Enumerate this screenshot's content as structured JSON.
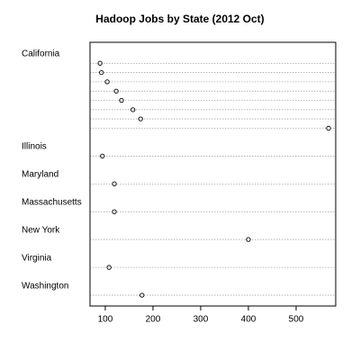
{
  "chart_data": {
    "type": "dot",
    "title": "Hadoop Jobs by State (2012 Oct)",
    "groups": [
      {
        "name": "California",
        "values": [
          89,
          92,
          104,
          123,
          134,
          158,
          174,
          568
        ]
      },
      {
        "name": "Illinois",
        "values": [
          94
        ]
      },
      {
        "name": "Maryland",
        "values": [
          119
        ]
      },
      {
        "name": "Massachusetts",
        "values": [
          119
        ]
      },
      {
        "name": "New York",
        "values": [
          400
        ]
      },
      {
        "name": "Virginia",
        "values": [
          108
        ]
      },
      {
        "name": "Washington",
        "values": [
          177
        ]
      }
    ],
    "xlim": [
      68,
      583
    ],
    "xticks": [
      100,
      200,
      300,
      400,
      500
    ],
    "grid": true
  }
}
